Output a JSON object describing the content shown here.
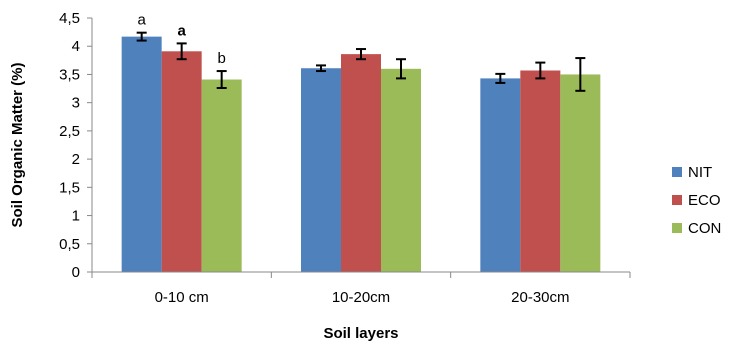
{
  "chart_data": {
    "type": "bar",
    "title": "",
    "xlabel": "Soil layers",
    "ylabel": "Soil Organic Matter (%)",
    "ylim": [
      0,
      4.5
    ],
    "yticks": [
      "0",
      "0,5",
      "1",
      "1,5",
      "2",
      "2,5",
      "3",
      "3,5",
      "4",
      "4,5"
    ],
    "categories": [
      "0-10 cm",
      "10-20cm",
      "20-30cm"
    ],
    "series": [
      {
        "name": "NIT",
        "color": "#4f81bd",
        "values": [
          4.17,
          3.61,
          3.43
        ],
        "errors": [
          0.07,
          0.05,
          0.08
        ]
      },
      {
        "name": "ECO",
        "color": "#c0504d",
        "values": [
          3.91,
          3.86,
          3.57
        ],
        "errors": [
          0.14,
          0.09,
          0.14
        ]
      },
      {
        "name": "CON",
        "color": "#9bbb59",
        "values": [
          3.41,
          3.6,
          3.5
        ],
        "errors": [
          0.15,
          0.17,
          0.29
        ]
      }
    ],
    "annotations": [
      {
        "category": 0,
        "series": 0,
        "text": "a"
      },
      {
        "category": 0,
        "series": 1,
        "text": "a"
      },
      {
        "category": 0,
        "series": 2,
        "text": "b"
      }
    ],
    "grid": false,
    "legend_position": "right"
  }
}
